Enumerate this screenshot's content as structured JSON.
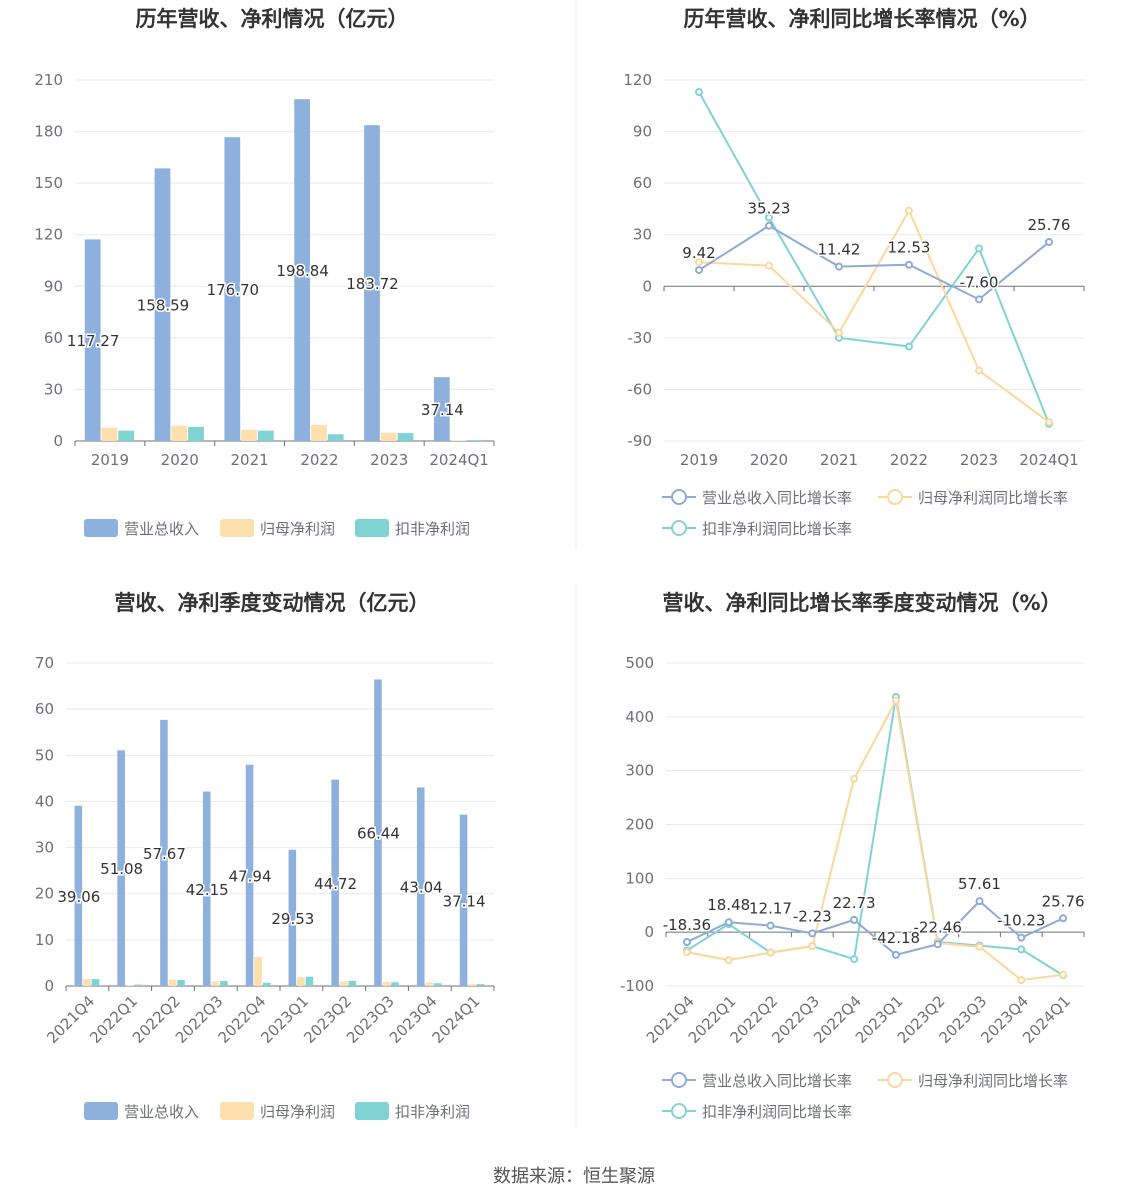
{
  "source": "数据来源：恒生聚源",
  "colors": {
    "revenue": "#8eb0dc",
    "net_profit": "#fde0ae",
    "deducted_profit": "#7fd3d3",
    "rev_line": "#8eaad8",
    "np_line": "#fbd79a",
    "dp_line": "#7fd3d3",
    "axis_text": "#6e7079",
    "grid": "#e6e9f0",
    "title": "#333333"
  },
  "chart_data": [
    {
      "type": "bar",
      "title": "历年营收、净利情况（亿元）",
      "categories": [
        "2019",
        "2020",
        "2021",
        "2022",
        "2023",
        "2024Q1"
      ],
      "yticks": [
        "0",
        "30",
        "60",
        "90",
        "120",
        "150",
        "180",
        "210"
      ],
      "ylim": [
        0,
        210
      ],
      "series": [
        {
          "name": "营业总收入",
          "values": [
            117.27,
            158.59,
            176.7,
            198.84,
            183.72,
            37.14
          ],
          "labels": [
            "117.27",
            "158.59",
            "176.70",
            "198.84",
            "183.72",
            "37.14"
          ]
        },
        {
          "name": "归母净利润",
          "values": [
            7.8,
            8.9,
            6.5,
            9.4,
            4.8,
            0.4
          ]
        },
        {
          "name": "扣非净利润",
          "values": [
            6.0,
            8.2,
            6.0,
            3.9,
            4.6,
            0.5
          ]
        }
      ],
      "legend": "bottom"
    },
    {
      "type": "line",
      "title": "历年营收、净利同比增长率情况（%）",
      "categories": [
        "2019",
        "2020",
        "2021",
        "2022",
        "2023",
        "2024Q1"
      ],
      "yticks": [
        "-90",
        "-60",
        "-30",
        "0",
        "30",
        "60",
        "90",
        "120"
      ],
      "ylim": [
        -90,
        120
      ],
      "series": [
        {
          "name": "营业总收入同比增长率",
          "values": [
            9.42,
            35.23,
            11.42,
            12.53,
            -7.6,
            25.76
          ],
          "labels": [
            "9.42",
            "35.23",
            "11.42",
            "12.53",
            "-7.60",
            "25.76"
          ]
        },
        {
          "name": "归母净利润同比增长率",
          "values": [
            14,
            12,
            -27,
            44,
            -49,
            -79
          ]
        },
        {
          "name": "扣非净利润同比增长率",
          "values": [
            113,
            40,
            -30,
            -35,
            22,
            -80
          ]
        }
      ],
      "legend": "bottom"
    },
    {
      "type": "bar",
      "title": "营收、净利季度变动情况（亿元）",
      "categories": [
        "2021Q4",
        "2022Q1",
        "2022Q2",
        "2022Q3",
        "2022Q4",
        "2023Q1",
        "2023Q2",
        "2023Q3",
        "2023Q4",
        "2024Q1"
      ],
      "yticks": [
        "0",
        "10",
        "20",
        "30",
        "40",
        "50",
        "60",
        "70"
      ],
      "ylim": [
        0,
        70
      ],
      "series": [
        {
          "name": "营业总收入",
          "values": [
            39.06,
            51.08,
            57.67,
            42.15,
            47.94,
            29.53,
            44.72,
            66.44,
            43.04,
            37.14
          ],
          "labels": [
            "39.06",
            "51.08",
            "57.67",
            "42.15",
            "47.94",
            "29.53",
            "44.72",
            "66.44",
            "43.04",
            "37.14"
          ]
        },
        {
          "name": "归母净利润",
          "values": [
            1.5,
            0.2,
            1.4,
            1.0,
            6.3,
            1.9,
            1.0,
            0.9,
            0.8,
            0.4
          ]
        },
        {
          "name": "扣非净利润",
          "values": [
            1.5,
            0.3,
            1.3,
            1.1,
            0.7,
            2.0,
            1.1,
            0.8,
            0.6,
            0.4
          ]
        }
      ],
      "legend": "bottom"
    },
    {
      "type": "line",
      "title": "营收、净利同比增长率季度变动情况（%）",
      "categories": [
        "2021Q4",
        "2022Q1",
        "2022Q2",
        "2022Q3",
        "2022Q4",
        "2023Q1",
        "2023Q2",
        "2023Q3",
        "2023Q4",
        "2024Q1"
      ],
      "yticks": [
        "-100",
        "0",
        "100",
        "200",
        "300",
        "400",
        "500"
      ],
      "ylim": [
        -100,
        500
      ],
      "series": [
        {
          "name": "营业总收入同比增长率",
          "values": [
            -18.36,
            18.48,
            12.17,
            -2.23,
            22.73,
            -42.18,
            -22.46,
            57.61,
            -10.23,
            25.76
          ],
          "labels": [
            "-18.36",
            "18.48",
            "12.17",
            "-2.23",
            "22.73",
            "-42.18",
            "-22.46",
            "57.61",
            "-10.23",
            "25.76"
          ]
        },
        {
          "name": "归母净利润同比增长率",
          "values": [
            -37,
            -52,
            -38,
            -26,
            285,
            430,
            -20,
            -27,
            -89,
            -79
          ]
        },
        {
          "name": "扣非净利润同比增长率",
          "values": [
            -34,
            15,
            -38,
            -26,
            -50,
            437,
            -18,
            -25,
            -32,
            -80
          ]
        }
      ],
      "legend": "bottom"
    }
  ]
}
